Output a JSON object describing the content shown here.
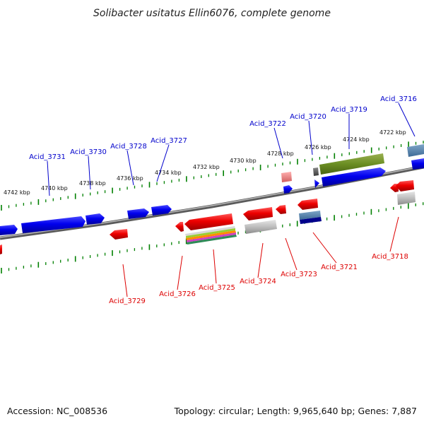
{
  "title": "Solibacter usitatus Ellin6076, complete genome",
  "footer": {
    "accession": "Accession: NC_008536",
    "summary": "Topology: circular; Length: 9,965,640 bp; Genes: 7,887"
  },
  "colors": {
    "forward_gene": "#0000ee",
    "reverse_gene": "#ee0000",
    "forward_label": "#0000cc",
    "reverse_label": "#dd0000",
    "backbone": "#777777",
    "tick": "#008000"
  },
  "scale_ticks": [
    "4742 kbp",
    "4740 kbp",
    "4738 kbp",
    "4736 kbp",
    "4734 kbp",
    "4732 kbp",
    "4730 kbp",
    "4728 kbp",
    "4726 kbp",
    "4724 kbp",
    "4722 kbp"
  ],
  "forward_labels": [
    "Acid_3731",
    "Acid_3730",
    "Acid_3728",
    "Acid_3727",
    "Acid_3722",
    "Acid_3720",
    "Acid_3719",
    "Acid_3716"
  ],
  "reverse_labels": [
    "Acid_3729",
    "Acid_3726",
    "Acid_3725",
    "Acid_3724",
    "Acid_3723",
    "Acid_3721",
    "Acid_3718"
  ]
}
